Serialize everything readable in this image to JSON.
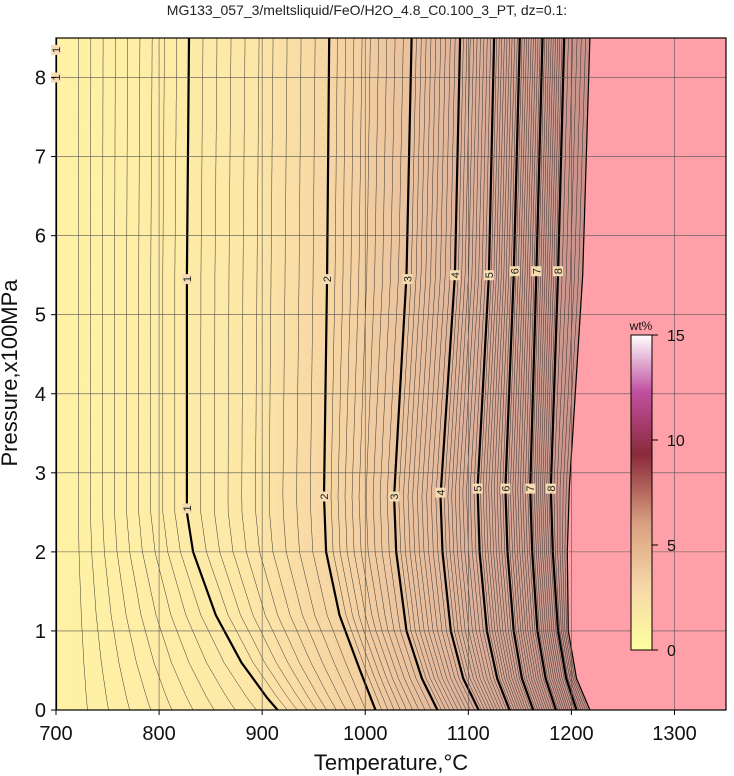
{
  "chart_data": {
    "type": "heatmap",
    "title": "MG133_057_3/meltsliquid/FeO/H2O_4.8_C0.100_3_PT, dz=0.1:",
    "xlabel": "Temperature,°C",
    "ylabel": "Pressure,x100MPa",
    "xlim": [
      700,
      1350
    ],
    "ylim": [
      0,
      8.5
    ],
    "xticks": [
      "700",
      "800",
      "900",
      "1000",
      "1100",
      "1200",
      "1300"
    ],
    "yticks": [
      "0",
      "1",
      "2",
      "3",
      "4",
      "5",
      "6",
      "7",
      "8"
    ],
    "grid": true,
    "contour_interval": 0.1,
    "colorbar": {
      "label": "wt%",
      "range": [
        0,
        15
      ],
      "ticks": [
        "0",
        "5",
        "10",
        "15"
      ],
      "colors": [
        "#ffffa0",
        "#f6d8a8",
        "#d9a080",
        "#8a2a3a",
        "#c050a0",
        "#ffffff"
      ]
    },
    "no_liquid_color": "#ffa0a8",
    "labeled_contours": [
      {
        "value": "1",
        "points": [
          [
            700,
            8.5
          ],
          [
            700,
            0
          ]
        ],
        "labels": [
          [
            700,
            8.35
          ],
          [
            700,
            8.0
          ]
        ]
      },
      {
        "value": "1",
        "points": [
          [
            829,
            8.5
          ],
          [
            827,
            5.5
          ],
          [
            827,
            2.5
          ],
          [
            833,
            2.0
          ],
          [
            855,
            1.2
          ],
          [
            880,
            0.6
          ],
          [
            905,
            0.15
          ],
          [
            915,
            0
          ]
        ],
        "labels": [
          [
            827,
            5.45
          ],
          [
            827,
            2.55
          ]
        ]
      },
      {
        "value": "2",
        "points": [
          [
            965,
            8.5
          ],
          [
            963,
            5.5
          ],
          [
            960,
            2.7
          ],
          [
            962,
            2.0
          ],
          [
            975,
            1.2
          ],
          [
            995,
            0.5
          ],
          [
            1010,
            0
          ]
        ],
        "labels": [
          [
            963,
            5.45
          ],
          [
            960,
            2.7
          ]
        ]
      },
      {
        "value": "3",
        "points": [
          [
            1045,
            8.5
          ],
          [
            1040,
            5.5
          ],
          [
            1028,
            2.7
          ],
          [
            1030,
            2.0
          ],
          [
            1040,
            1.0
          ],
          [
            1055,
            0.4
          ],
          [
            1070,
            0
          ]
        ],
        "labels": [
          [
            1041,
            5.45
          ],
          [
            1028,
            2.7
          ]
        ]
      },
      {
        "value": "4",
        "points": [
          [
            1092,
            8.5
          ],
          [
            1087,
            5.5
          ],
          [
            1073,
            2.7
          ],
          [
            1075,
            2.0
          ],
          [
            1083,
            1.0
          ],
          [
            1095,
            0.4
          ],
          [
            1110,
            0
          ]
        ],
        "labels": [
          [
            1087,
            5.5
          ],
          [
            1073,
            2.75
          ]
        ]
      },
      {
        "value": "5",
        "points": [
          [
            1125,
            8.5
          ],
          [
            1120,
            5.5
          ],
          [
            1109,
            2.8
          ],
          [
            1111,
            2.0
          ],
          [
            1118,
            1.0
          ],
          [
            1128,
            0.4
          ],
          [
            1140,
            0
          ]
        ],
        "labels": [
          [
            1120,
            5.5
          ],
          [
            1109,
            2.8
          ]
        ]
      },
      {
        "value": "6",
        "points": [
          [
            1150,
            8.5
          ],
          [
            1144,
            5.5
          ],
          [
            1136,
            2.8
          ],
          [
            1138,
            2.0
          ],
          [
            1144,
            1.0
          ],
          [
            1152,
            0.4
          ],
          [
            1163,
            0
          ]
        ],
        "labels": [
          [
            1145,
            5.55
          ],
          [
            1136,
            2.8
          ]
        ]
      },
      {
        "value": "7",
        "points": [
          [
            1172,
            8.5
          ],
          [
            1166,
            5.5
          ],
          [
            1160,
            2.8
          ],
          [
            1162,
            2.0
          ],
          [
            1167,
            1.0
          ],
          [
            1175,
            0.4
          ],
          [
            1185,
            0
          ]
        ],
        "labels": [
          [
            1166,
            5.55
          ],
          [
            1160,
            2.8
          ]
        ]
      },
      {
        "value": "8",
        "points": [
          [
            1193,
            8.5
          ],
          [
            1187,
            5.5
          ],
          [
            1180,
            2.8
          ],
          [
            1182,
            2.0
          ],
          [
            1187,
            1.0
          ],
          [
            1195,
            0.4
          ],
          [
            1205,
            0
          ]
        ],
        "labels": [
          [
            1187,
            5.55
          ],
          [
            1180,
            2.8
          ]
        ]
      }
    ],
    "no_liquid_boundary": [
      [
        1218,
        8.5
      ],
      [
        1211,
        5.5
      ],
      [
        1198,
        2.8
      ],
      [
        1196,
        2.0
      ],
      [
        1197,
        1.0
      ],
      [
        1205,
        0.4
      ],
      [
        1218,
        0
      ]
    ]
  }
}
